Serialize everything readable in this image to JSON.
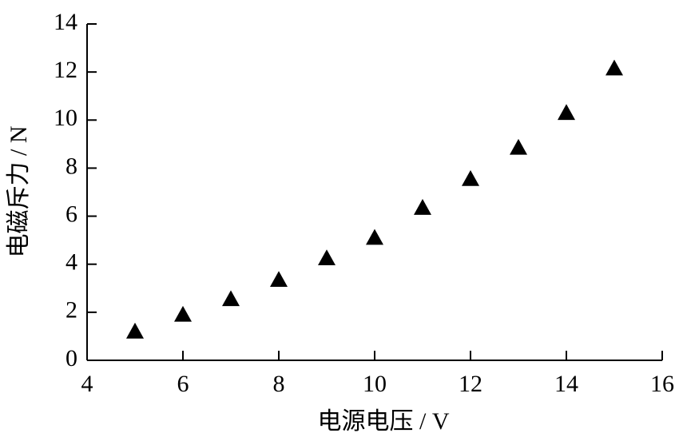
{
  "chart_data": {
    "type": "scatter",
    "x_label": "电源电压 / V",
    "y_label": "电磁斥力 / N",
    "x": [
      5,
      6,
      7,
      8,
      9,
      10,
      11,
      12,
      13,
      14,
      15
    ],
    "series": [
      {
        "color": "#000000",
        "values": [
          1.2,
          1.9,
          2.55,
          3.35,
          4.25,
          5.1,
          6.35,
          7.55,
          8.85,
          10.3,
          12.15
        ]
      }
    ],
    "xlim": [
      4,
      16
    ],
    "xticks": [
      4,
      6,
      8,
      10,
      12,
      14,
      16
    ],
    "ylim": [
      0,
      14
    ],
    "yticks": [
      0,
      2,
      4,
      6,
      8,
      10,
      12,
      14
    ],
    "marker": "triangle"
  }
}
